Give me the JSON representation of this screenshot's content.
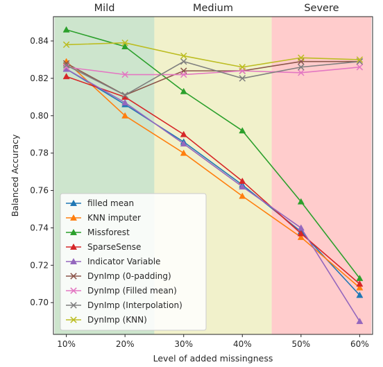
{
  "chart_data": {
    "type": "line",
    "xlabel": "Level of added missingness",
    "ylabel": "Balanced Accuracy",
    "categories": [
      "10%",
      "20%",
      "30%",
      "40%",
      "50%",
      "60%"
    ],
    "x": [
      10,
      20,
      30,
      40,
      50,
      60
    ],
    "ylim": [
      0.683,
      0.853
    ],
    "xlim": [
      7.8,
      62.2
    ],
    "yticks": [
      0.7,
      0.72,
      0.74,
      0.76,
      0.78,
      0.8,
      0.82,
      0.84
    ],
    "ytick_labels": [
      "0.70",
      "0.72",
      "0.74",
      "0.76",
      "0.78",
      "0.80",
      "0.82",
      "0.84"
    ],
    "grid": false,
    "legend_position": "lower-left",
    "bands": [
      {
        "label": "Mild",
        "x_from": 8,
        "x_to": 25,
        "color": "#cde5cd"
      },
      {
        "label": "Medium",
        "x_from": 25,
        "x_to": 45,
        "color": "#f1f1cb"
      },
      {
        "label": "Severe",
        "x_from": 45,
        "x_to": 62,
        "color": "#ffcccc"
      }
    ],
    "series": [
      {
        "name": "filled mean",
        "color": "#1f77b4",
        "marker": "triangle",
        "values": [
          0.825,
          0.806,
          0.786,
          0.763,
          0.738,
          0.704
        ]
      },
      {
        "name": "KNN imputer",
        "color": "#ff7f0e",
        "marker": "triangle",
        "values": [
          0.829,
          0.8,
          0.78,
          0.757,
          0.735,
          0.708
        ]
      },
      {
        "name": "Missforest",
        "color": "#2ca02c",
        "marker": "triangle",
        "values": [
          0.846,
          0.837,
          0.813,
          0.792,
          0.754,
          0.713
        ]
      },
      {
        "name": "SparseSense",
        "color": "#d62728",
        "marker": "triangle",
        "values": [
          0.821,
          0.81,
          0.79,
          0.765,
          0.737,
          0.71
        ]
      },
      {
        "name": "Indicator Variable",
        "color": "#9467bd",
        "marker": "triangle",
        "values": [
          0.825,
          0.807,
          0.785,
          0.762,
          0.74,
          0.69
        ]
      },
      {
        "name": "DynImp (0-padding)",
        "color": "#8c564b",
        "marker": "x",
        "values": [
          0.828,
          0.811,
          0.824,
          0.824,
          0.829,
          0.829
        ]
      },
      {
        "name": "DynImp (Filled mean)",
        "color": "#e377c2",
        "marker": "x",
        "values": [
          0.826,
          0.822,
          0.822,
          0.824,
          0.823,
          0.826
        ]
      },
      {
        "name": "DynImp (Interpolation)",
        "color": "#7f7f7f",
        "marker": "x",
        "values": [
          0.827,
          0.811,
          0.829,
          0.82,
          0.826,
          0.829
        ]
      },
      {
        "name": "DynImp (KNN)",
        "color": "#bcbd22",
        "marker": "x",
        "values": [
          0.838,
          0.839,
          0.832,
          0.826,
          0.831,
          0.83
        ]
      }
    ]
  }
}
